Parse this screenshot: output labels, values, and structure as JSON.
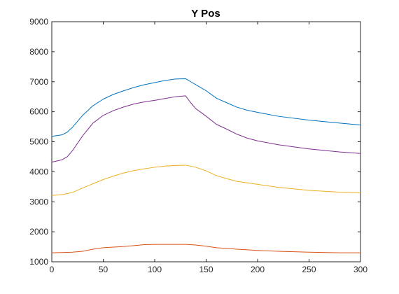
{
  "chart_data": {
    "type": "line",
    "title": "Y Pos",
    "xlabel": "",
    "ylabel": "",
    "xlim": [
      0,
      300
    ],
    "ylim": [
      1000,
      9000
    ],
    "xticks": [
      0,
      50,
      100,
      150,
      200,
      250,
      300
    ],
    "yticks": [
      1000,
      2000,
      3000,
      4000,
      5000,
      6000,
      7000,
      8000,
      9000
    ],
    "grid": false,
    "legend": "none",
    "series": [
      {
        "color": "#0072BD",
        "x": [
          0,
          10,
          15,
          20,
          30,
          40,
          50,
          60,
          70,
          80,
          90,
          100,
          110,
          120,
          130,
          135,
          140,
          150,
          160,
          170,
          180,
          190,
          200,
          220,
          250,
          280,
          300
        ],
        "y": [
          5180,
          5230,
          5320,
          5480,
          5880,
          6200,
          6420,
          6580,
          6700,
          6810,
          6900,
          6970,
          7040,
          7090,
          7100,
          7000,
          6900,
          6700,
          6450,
          6300,
          6150,
          6050,
          5980,
          5850,
          5720,
          5620,
          5560
        ]
      },
      {
        "color": "#7E2F8E",
        "x": [
          0,
          10,
          15,
          20,
          30,
          40,
          50,
          60,
          70,
          80,
          90,
          100,
          110,
          120,
          130,
          135,
          140,
          150,
          160,
          170,
          180,
          190,
          200,
          220,
          250,
          280,
          300
        ],
        "y": [
          4320,
          4400,
          4500,
          4700,
          5200,
          5620,
          5880,
          6040,
          6160,
          6260,
          6330,
          6380,
          6440,
          6500,
          6530,
          6300,
          6100,
          5850,
          5580,
          5420,
          5250,
          5120,
          5030,
          4900,
          4760,
          4660,
          4610
        ]
      },
      {
        "color": "#EDB120",
        "x": [
          0,
          10,
          20,
          30,
          40,
          50,
          60,
          70,
          80,
          90,
          100,
          110,
          120,
          130,
          140,
          150,
          160,
          170,
          180,
          200,
          220,
          250,
          280,
          300
        ],
        "y": [
          3210,
          3240,
          3310,
          3460,
          3600,
          3740,
          3860,
          3960,
          4040,
          4100,
          4150,
          4190,
          4210,
          4220,
          4150,
          4030,
          3870,
          3770,
          3680,
          3580,
          3480,
          3380,
          3320,
          3300
        ]
      },
      {
        "color": "#D95319",
        "x": [
          0,
          10,
          20,
          30,
          40,
          50,
          60,
          70,
          80,
          90,
          100,
          110,
          120,
          130,
          140,
          150,
          160,
          180,
          200,
          220,
          250,
          280,
          300
        ],
        "y": [
          1300,
          1310,
          1320,
          1350,
          1420,
          1470,
          1490,
          1510,
          1540,
          1570,
          1580,
          1580,
          1580,
          1580,
          1560,
          1520,
          1470,
          1420,
          1380,
          1350,
          1320,
          1300,
          1300
        ]
      }
    ]
  }
}
